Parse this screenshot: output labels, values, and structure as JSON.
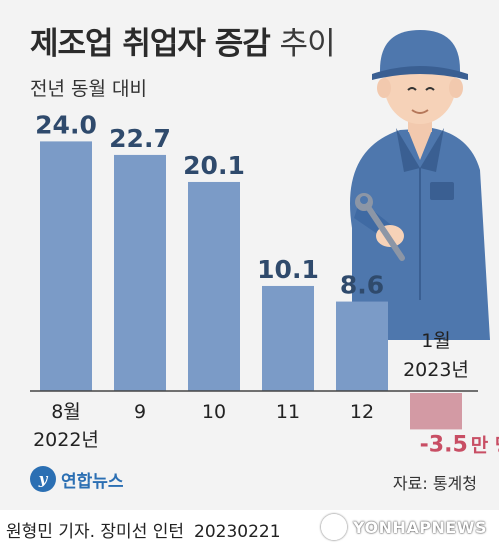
{
  "title": "제조업 취업자 증감",
  "title_suffix": "추이",
  "subtitle": "전년 동월 대비",
  "source": "자료: 통계청",
  "logo_text": "연합뉴스",
  "credit": "원형민 기자. 장미선 인턴",
  "credit_date": "20230221",
  "watermark": "YONHAPNEWS",
  "colors": {
    "positive_bar": "#7b9bc7",
    "negative_bar": "#d39aa4",
    "background": "#f3f3f3"
  },
  "chart_data": {
    "type": "bar",
    "title": "제조업 취업자 증감 추이",
    "subtitle": "전년 동월 대비",
    "categories": [
      "8월",
      "9",
      "10",
      "11",
      "12",
      "1월"
    ],
    "category_years": [
      "2022년",
      "",
      "",
      "",
      "",
      "2023년"
    ],
    "values": [
      24.0,
      22.7,
      20.1,
      10.1,
      8.6,
      -3.5
    ],
    "value_labels": [
      "24.0",
      "22.7",
      "20.1",
      "10.1",
      "8.6",
      "-3.5"
    ],
    "negative_unit": "만 명",
    "grid": false
  }
}
